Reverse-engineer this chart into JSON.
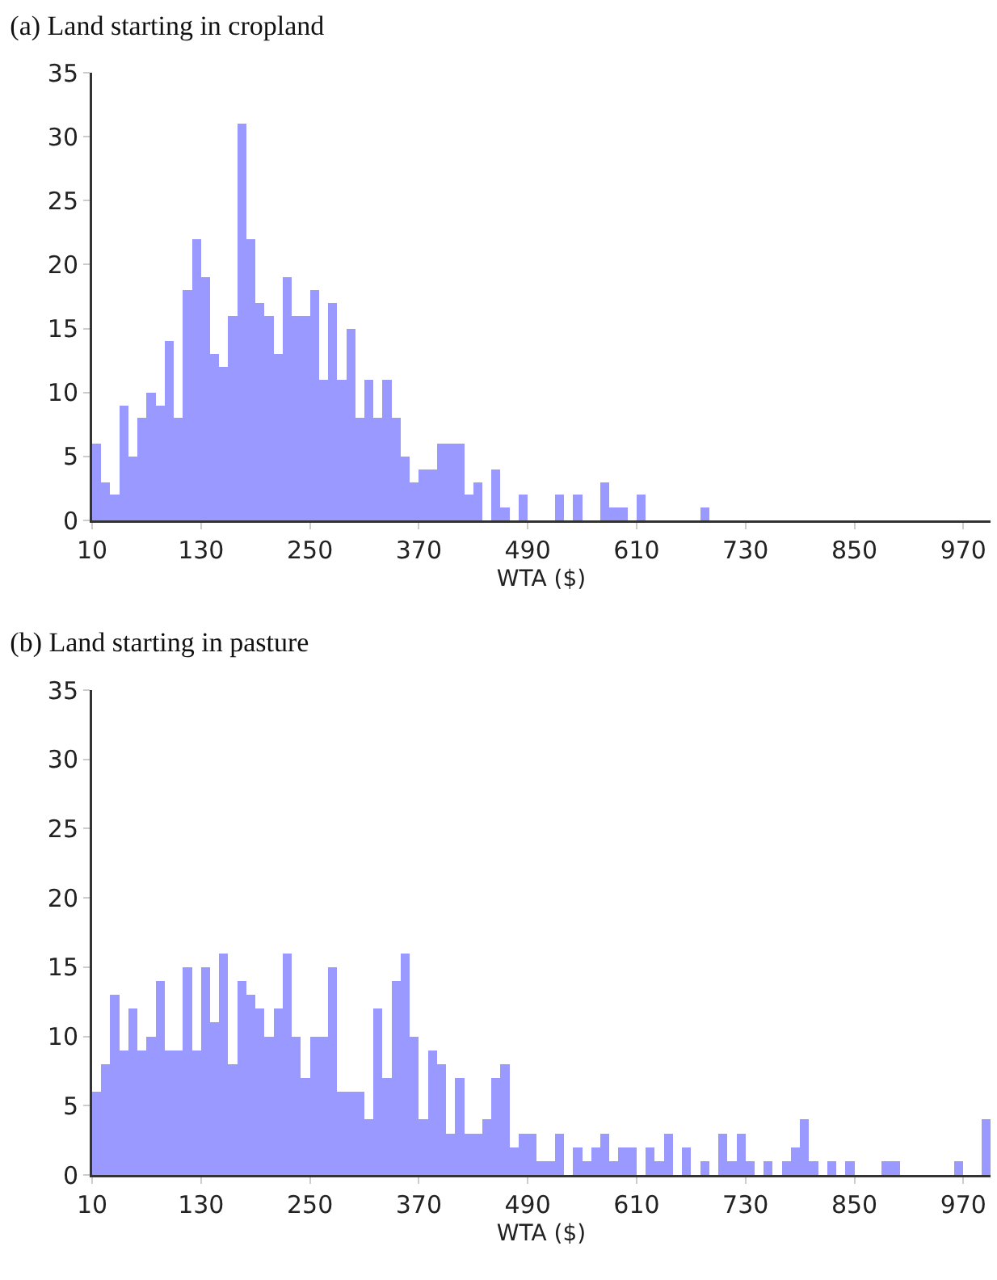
{
  "chart_data": [
    {
      "type": "histogram",
      "title": "(a) Land starting in cropland",
      "xlabel": "WTA ($)",
      "color": "#9999ff",
      "bins": [
        10,
        20,
        30,
        40,
        50,
        60,
        70,
        80,
        90,
        100,
        110,
        120,
        130,
        140,
        150,
        160,
        170,
        180,
        190,
        200,
        210,
        220,
        230,
        240,
        250,
        260,
        270,
        280,
        290,
        300,
        310,
        320,
        330,
        340,
        350,
        360,
        370,
        380,
        390,
        400,
        410,
        420,
        430,
        440,
        450,
        460,
        470,
        480,
        490,
        500,
        510,
        520,
        530,
        540,
        550,
        560,
        570,
        580,
        590,
        600,
        610,
        620,
        630,
        640,
        650,
        660,
        670,
        680,
        690,
        700,
        710,
        720,
        730,
        740,
        750,
        760,
        770,
        780,
        790,
        800,
        810,
        820,
        830,
        840,
        850,
        860,
        870,
        880,
        890,
        900,
        910,
        920,
        930,
        940,
        950,
        960,
        970,
        980,
        990,
        1000
      ],
      "values": [
        6,
        3,
        2,
        9,
        5,
        8,
        10,
        9,
        14,
        8,
        18,
        22,
        19,
        13,
        12,
        16,
        31,
        22,
        17,
        16,
        13,
        19,
        16,
        16,
        18,
        11,
        17,
        11,
        15,
        8,
        11,
        8,
        11,
        8,
        5,
        3,
        4,
        4,
        6,
        6,
        6,
        2,
        3,
        0,
        4,
        1,
        0,
        2,
        0,
        0,
        0,
        2,
        0,
        2,
        0,
        0,
        3,
        1,
        1,
        0,
        2,
        0,
        0,
        0,
        0,
        0,
        0,
        1,
        0,
        0,
        0,
        0,
        0,
        0,
        0,
        0,
        0,
        0,
        0,
        0,
        0,
        0,
        0,
        0,
        0,
        0,
        0,
        0,
        0,
        0,
        0,
        0,
        0,
        0,
        0,
        0,
        0,
        0,
        0
      ],
      "xlim": [
        10,
        1000
      ],
      "xticks": [
        10,
        130,
        250,
        370,
        490,
        610,
        730,
        850,
        970
      ],
      "ylim": [
        0,
        35
      ],
      "yticks": [
        0,
        5,
        10,
        15,
        20,
        25,
        30,
        35
      ],
      "grid": false
    },
    {
      "type": "histogram",
      "title": "(b) Land starting in pasture",
      "xlabel": "WTA ($)",
      "color": "#9999ff",
      "bins": [
        10,
        20,
        30,
        40,
        50,
        60,
        70,
        80,
        90,
        100,
        110,
        120,
        130,
        140,
        150,
        160,
        170,
        180,
        190,
        200,
        210,
        220,
        230,
        240,
        250,
        260,
        270,
        280,
        290,
        300,
        310,
        320,
        330,
        340,
        350,
        360,
        370,
        380,
        390,
        400,
        410,
        420,
        430,
        440,
        450,
        460,
        470,
        480,
        490,
        500,
        510,
        520,
        530,
        540,
        550,
        560,
        570,
        580,
        590,
        600,
        610,
        620,
        630,
        640,
        650,
        660,
        670,
        680,
        690,
        700,
        710,
        720,
        730,
        740,
        750,
        760,
        770,
        780,
        790,
        800,
        810,
        820,
        830,
        840,
        850,
        860,
        870,
        880,
        890,
        900,
        910,
        920,
        930,
        940,
        950,
        960,
        970,
        980,
        990,
        1000
      ],
      "values": [
        6,
        8,
        13,
        9,
        12,
        9,
        10,
        14,
        9,
        9,
        15,
        9,
        15,
        11,
        16,
        8,
        14,
        13,
        12,
        10,
        12,
        16,
        10,
        7,
        10,
        10,
        15,
        6,
        6,
        6,
        4,
        12,
        7,
        14,
        16,
        10,
        4,
        9,
        8,
        3,
        7,
        3,
        3,
        4,
        7,
        8,
        2,
        3,
        3,
        1,
        1,
        3,
        0,
        2,
        1,
        2,
        3,
        1,
        2,
        2,
        0,
        2,
        1,
        3,
        0,
        2,
        0,
        1,
        0,
        3,
        1,
        3,
        1,
        0,
        1,
        0,
        1,
        2,
        4,
        1,
        0,
        1,
        0,
        1,
        0,
        0,
        0,
        1,
        1,
        0,
        0,
        0,
        0,
        0,
        0,
        1,
        0,
        0,
        4
      ],
      "xlim": [
        10,
        1000
      ],
      "xticks": [
        10,
        130,
        250,
        370,
        490,
        610,
        730,
        850,
        970
      ],
      "ylim": [
        0,
        35
      ],
      "yticks": [
        0,
        5,
        10,
        15,
        20,
        25,
        30,
        35
      ],
      "grid": false
    }
  ]
}
